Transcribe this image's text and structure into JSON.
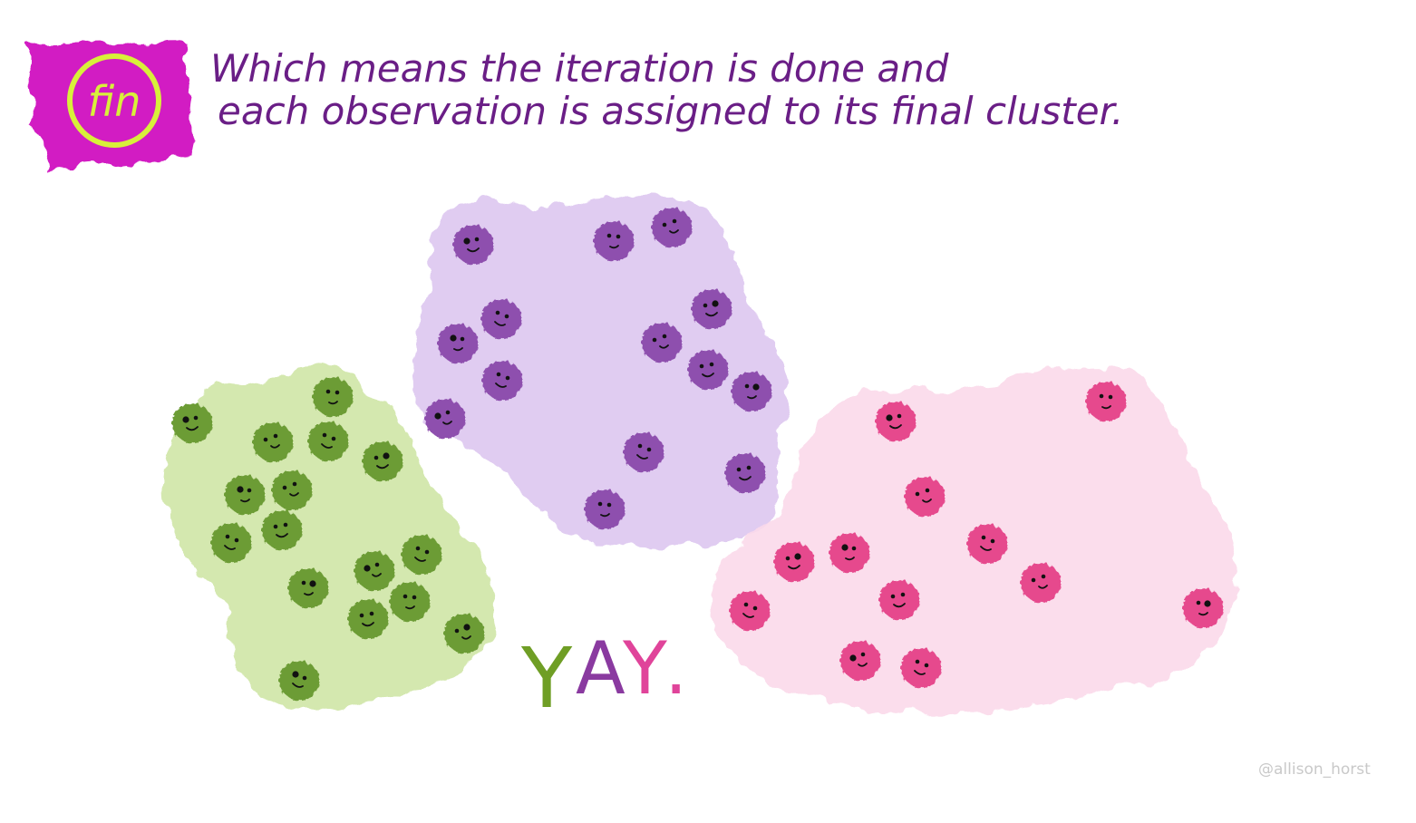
{
  "badge": {
    "label": "fin",
    "bg_color": "#d21fc3",
    "ring_color": "#d8f03a"
  },
  "title": {
    "line1": "Which means the iteration is  done and",
    "line2": "each observation is assigned to its final cluster.",
    "color": "#6a1e86"
  },
  "exclamation": {
    "letters": [
      {
        "char": "Y",
        "color": "#6f9e25"
      },
      {
        "char": "A",
        "color": "#8a3aa0"
      },
      {
        "char": "Y",
        "color": "#e0449a"
      },
      {
        "char": ".",
        "color": "#e0449a"
      }
    ]
  },
  "credit": "@allison_horst",
  "clusters": [
    {
      "name": "green",
      "blob_color": "#cfe6a6",
      "point_color": "#6c9c35",
      "icon": "smiley-face-icon",
      "points": [
        [
          212,
          467
        ],
        [
          367,
          438
        ],
        [
          301,
          488
        ],
        [
          362,
          487
        ],
        [
          422,
          509
        ],
        [
          270,
          546
        ],
        [
          322,
          541
        ],
        [
          255,
          599
        ],
        [
          311,
          585
        ],
        [
          340,
          649
        ],
        [
          413,
          630
        ],
        [
          465,
          612
        ],
        [
          406,
          683
        ],
        [
          452,
          664
        ],
        [
          512,
          699
        ],
        [
          330,
          751
        ]
      ]
    },
    {
      "name": "purple",
      "blob_color": "#ddc6ef",
      "point_color": "#8e4fae",
      "icon": "smiley-face-icon",
      "points": [
        [
          522,
          270
        ],
        [
          677,
          266
        ],
        [
          741,
          251
        ],
        [
          553,
          352
        ],
        [
          785,
          341
        ],
        [
          505,
          379
        ],
        [
          730,
          378
        ],
        [
          554,
          420
        ],
        [
          781,
          408
        ],
        [
          829,
          432
        ],
        [
          491,
          462
        ],
        [
          710,
          499
        ],
        [
          822,
          522
        ],
        [
          667,
          562
        ]
      ]
    },
    {
      "name": "pink",
      "blob_color": "#fbd9ea",
      "point_color": "#e6488d",
      "icon": "smiley-face-icon",
      "points": [
        [
          988,
          465
        ],
        [
          1220,
          443
        ],
        [
          1020,
          548
        ],
        [
          1089,
          600
        ],
        [
          876,
          620
        ],
        [
          937,
          610
        ],
        [
          1148,
          643
        ],
        [
          827,
          674
        ],
        [
          992,
          662
        ],
        [
          1327,
          671
        ],
        [
          949,
          729
        ],
        [
          1016,
          737
        ]
      ]
    }
  ]
}
